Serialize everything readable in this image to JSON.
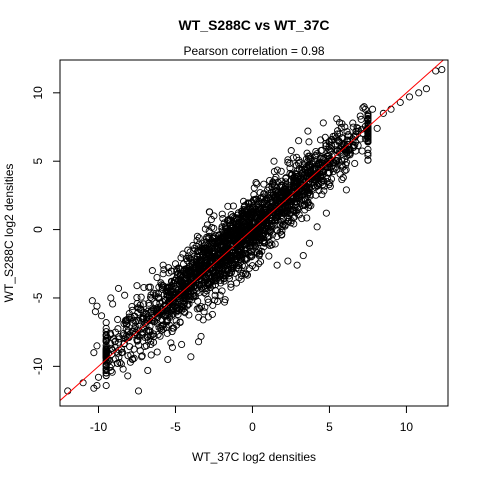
{
  "chart_data": {
    "type": "scatter",
    "title": "WT_S288C vs WT_37C",
    "subtitle": "Pearson correlation =  0.98",
    "xlabel": "WT_37C log2 densities",
    "ylabel": "WT_S288C log2 densities",
    "xlim": [
      -12.5,
      12.7
    ],
    "ylim": [
      -12.9,
      12.4
    ],
    "xticks": [
      -10,
      -5,
      0,
      5,
      10
    ],
    "yticks": [
      -10,
      -5,
      0,
      5,
      10
    ],
    "xtick_labels": [
      "-10",
      "-5",
      "0",
      "5",
      "10"
    ],
    "ytick_labels": [
      "-10",
      "-5",
      "0",
      "5",
      "10"
    ],
    "grid": false,
    "marker": "open-circle",
    "point_color": "#000000",
    "reference_line": {
      "slope": 1,
      "intercept": 0,
      "color": "#ff0000"
    },
    "series": [
      {
        "points": [
          [
            -12.0,
            -11.8
          ],
          [
            -11.0,
            -11.2
          ],
          [
            -10.3,
            -11.6
          ],
          [
            -10.1,
            -11.4
          ],
          [
            -10.0,
            -10.8
          ],
          [
            -10.2,
            -6.0
          ],
          [
            -10.4,
            -5.2
          ],
          [
            -10.1,
            -5.6
          ],
          [
            -9.8,
            -6.3
          ],
          [
            -10.3,
            -9.0
          ],
          [
            -10.1,
            -8.5
          ],
          [
            -9.5,
            -6.8
          ],
          [
            -9.2,
            -5.0
          ],
          [
            -9.0,
            -8.0
          ],
          [
            -8.7,
            -4.3
          ],
          [
            -8.9,
            -7.5
          ],
          [
            -9.3,
            -9.6
          ],
          [
            -8.4,
            -10.2
          ],
          [
            -8.1,
            -10.7
          ],
          [
            -8.5,
            -9.0
          ],
          [
            -8.0,
            -6.4
          ],
          [
            -7.5,
            -4.1
          ],
          [
            -7.8,
            -9.5
          ],
          [
            -7.4,
            -11.8
          ],
          [
            -7.2,
            -9.3
          ],
          [
            -6.8,
            -10.3
          ],
          [
            -6.6,
            -8.4
          ],
          [
            -6.2,
            -3.5
          ],
          [
            -5.8,
            -2.6
          ],
          [
            -5.0,
            -2.5
          ],
          [
            -4.8,
            -2.8
          ],
          [
            -5.5,
            -9.5
          ],
          [
            -4.6,
            -8.4
          ],
          [
            -4.0,
            -9.3
          ],
          [
            -3.5,
            -8.2
          ],
          [
            -3.2,
            -6.6
          ],
          [
            -2.6,
            -6.2
          ],
          [
            -2.9,
            -5.1
          ],
          [
            -1.4,
            -4.0
          ],
          [
            -0.9,
            -2.9
          ],
          [
            -0.6,
            -3.2
          ],
          [
            0.4,
            -2.5
          ],
          [
            1.6,
            -2.6
          ],
          [
            2.3,
            -2.3
          ],
          [
            2.9,
            -2.6
          ],
          [
            3.3,
            -1.9
          ],
          [
            3.7,
            -1.0
          ],
          [
            4.2,
            0.2
          ],
          [
            4.8,
            1.2
          ],
          [
            5.9,
            3.8
          ],
          [
            6.1,
            2.9
          ],
          [
            -2.8,
            1.3
          ],
          [
            -2.5,
            1.0
          ],
          [
            -1.6,
            1.7
          ],
          [
            -0.4,
            1.4
          ],
          [
            0.5,
            2.7
          ],
          [
            1.4,
            5.0
          ],
          [
            2.3,
            5.1
          ],
          [
            3.0,
            6.5
          ],
          [
            3.6,
            7.2
          ],
          [
            4.6,
            7.8
          ],
          [
            6.0,
            7.5
          ],
          [
            7.0,
            8.3
          ],
          [
            7.8,
            8.8
          ],
          [
            8.5,
            8.5
          ],
          [
            9.0,
            8.8
          ],
          [
            9.6,
            9.3
          ],
          [
            10.2,
            9.7
          ],
          [
            10.8,
            10.0
          ],
          [
            11.3,
            10.3
          ],
          [
            11.9,
            11.6
          ],
          [
            12.3,
            11.7
          ],
          [
            8.1,
            7.4
          ],
          [
            7.5,
            6.8
          ],
          [
            6.9,
            7.2
          ],
          [
            -6.5,
            -3.0
          ],
          [
            -7.1,
            -6.5
          ],
          [
            -7.8,
            -5.9
          ],
          [
            -8.3,
            -4.8
          ],
          [
            -6.0,
            -7.8
          ],
          [
            -4.2,
            -1.5
          ],
          [
            -3.6,
            -0.8
          ],
          [
            -2.1,
            -4.8
          ],
          [
            -1.2,
            0.6
          ],
          [
            0.8,
            -1.0
          ],
          [
            1.9,
            -0.4
          ],
          [
            2.7,
            1.4
          ],
          [
            3.5,
            4.6
          ],
          [
            4.1,
            3.1
          ],
          [
            5.2,
            4.9
          ]
        ]
      }
    ],
    "dense_band": {
      "x_min": -9.5,
      "x_max": 7.5,
      "slope": 0.97,
      "intercept": 0.1,
      "spread": 0.9,
      "count": 2200
    }
  }
}
